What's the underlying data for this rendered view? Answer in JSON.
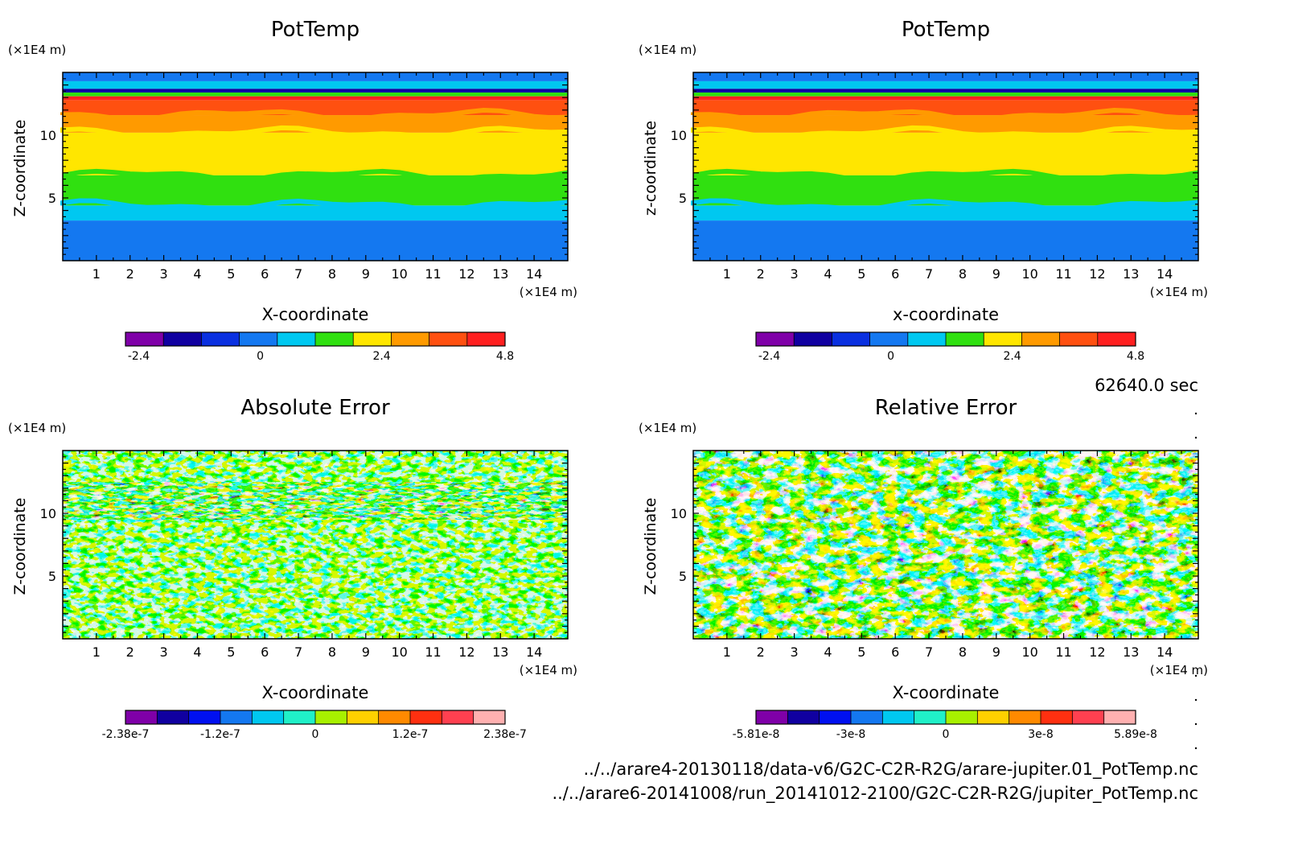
{
  "panels": [
    {
      "id": "pt1",
      "title": "PotTemp",
      "xlabel": "X-coordinate",
      "ylabel": "Z-coordinate",
      "x_unit": "(×1E4 m)",
      "y_unit": "(×1E4 m)",
      "x_ticks": [
        "1",
        "2",
        "3",
        "4",
        "5",
        "6",
        "7",
        "8",
        "9",
        "10",
        "11",
        "12",
        "13",
        "14"
      ],
      "y_ticks": [
        "5",
        "10"
      ],
      "colorbar": {
        "colors": [
          "#7f00a8",
          "#1000a0",
          "#0a30e0",
          "#1478f0",
          "#00c8f0",
          "#30e010",
          "#ffe600",
          "#ff9a00",
          "#ff5010",
          "#ff2020"
        ],
        "tick_labels": [
          "-2.4",
          "0",
          "2.4",
          "4.8"
        ]
      }
    },
    {
      "id": "pt2",
      "title": "PotTemp",
      "xlabel": "x-coordinate",
      "ylabel": "z-coordinate",
      "x_unit": "(×1E4 m)",
      "y_unit": "(×1E4 m)",
      "x_ticks": [
        "1",
        "2",
        "3",
        "4",
        "5",
        "6",
        "7",
        "8",
        "9",
        "10",
        "11",
        "12",
        "13",
        "14"
      ],
      "y_ticks": [
        "5",
        "10"
      ],
      "colorbar": {
        "colors": [
          "#7f00a8",
          "#1000a0",
          "#0a30e0",
          "#1478f0",
          "#00c8f0",
          "#30e010",
          "#ffe600",
          "#ff9a00",
          "#ff5010",
          "#ff2020"
        ],
        "tick_labels": [
          "-2.4",
          "0",
          "2.4",
          "4.8"
        ]
      }
    },
    {
      "id": "abs",
      "title": "Absolute Error",
      "xlabel": "X-coordinate",
      "ylabel": "Z-coordinate",
      "x_unit": "(×1E4 m)",
      "y_unit": "(×1E4 m)",
      "x_ticks": [
        "1",
        "2",
        "3",
        "4",
        "5",
        "6",
        "7",
        "8",
        "9",
        "10",
        "11",
        "12",
        "13",
        "14"
      ],
      "y_ticks": [
        "5",
        "10"
      ],
      "colorbar": {
        "colors": [
          "#7f00a8",
          "#1000a0",
          "#0010f0",
          "#1478f0",
          "#00c8f0",
          "#20f0c8",
          "#a8f000",
          "#ffd000",
          "#ff8a00",
          "#ff3010",
          "#ff4050",
          "#ffb0b0"
        ],
        "tick_labels": [
          "-2.38e-7",
          "-1.2e-7",
          "0",
          "1.2e-7",
          "2.38e-7"
        ]
      }
    },
    {
      "id": "rel",
      "title": "Relative Error",
      "xlabel": "X-coordinate",
      "ylabel": "Z-coordinate",
      "x_unit": "(×1E4 m)",
      "y_unit": "(×1E4 m)",
      "x_ticks": [
        "1",
        "2",
        "3",
        "4",
        "5",
        "6",
        "7",
        "8",
        "9",
        "10",
        "11",
        "12",
        "13",
        "14"
      ],
      "y_ticks": [
        "5",
        "10"
      ],
      "colorbar": {
        "colors": [
          "#7f00a8",
          "#1000a0",
          "#0010f0",
          "#1478f0",
          "#00c8f0",
          "#20f0c8",
          "#a8f000",
          "#ffd000",
          "#ff8a00",
          "#ff3010",
          "#ff4050",
          "#ffb0b0"
        ],
        "tick_labels": [
          "-5.81e-8",
          "-3e-8",
          "0",
          "3e-8",
          "5.89e-8"
        ]
      }
    }
  ],
  "time_label": "62640.0 sec",
  "file_paths": [
    "../../arare4-20130118/data-v6/G2C-C2R-R2G/arare-jupiter.01_PotTemp.nc",
    "../../arare6-20141008/run_20141012-2100/G2C-C2R-R2G/jupiter_PotTemp.nc"
  ],
  "chart_data": [
    {
      "type": "heatmap",
      "title": "PotTemp",
      "xlabel": "X-coordinate",
      "ylabel": "Z-coordinate",
      "x_unit": "(×1E4 m)",
      "y_unit": "(×1E4 m)",
      "xlim": [
        0,
        15
      ],
      "ylim": [
        0,
        15
      ],
      "levels": [
        -3.6,
        -2.4,
        -1.2,
        0,
        1.2,
        2.4,
        3.6,
        4.8,
        6.0,
        7.2,
        8.4
      ],
      "colorbar_ticks": [
        -2.4,
        0,
        2.4,
        4.8
      ],
      "bands": [
        {
          "z_bottom": 0,
          "z_top": 3.2,
          "level_index": 3
        },
        {
          "z_bottom": 3.2,
          "z_top": 4.4,
          "level_index": 4
        },
        {
          "z_bottom": 4.4,
          "z_top": 6.8,
          "level_index": 5
        },
        {
          "z_bottom": 6.8,
          "z_top": 10.2,
          "level_index": 6
        },
        {
          "z_bottom": 10.2,
          "z_top": 11.6,
          "level_index": 7
        },
        {
          "z_bottom": 11.6,
          "z_top": 12.8,
          "level_index": 8
        },
        {
          "z_bottom": 12.8,
          "z_top": 13.1,
          "level_index": 9
        },
        {
          "z_bottom": 13.1,
          "z_top": 13.4,
          "level_index": 5
        },
        {
          "z_bottom": 13.4,
          "z_top": 13.7,
          "level_index": 1
        },
        {
          "z_bottom": 13.7,
          "z_top": 14.3,
          "level_index": 4
        },
        {
          "z_bottom": 14.3,
          "z_top": 15,
          "level_index": 3
        }
      ]
    },
    {
      "type": "heatmap",
      "title": "PotTemp",
      "xlabel": "x-coordinate",
      "ylabel": "z-coordinate",
      "x_unit": "(×1E4 m)",
      "y_unit": "(×1E4 m)",
      "xlim": [
        0,
        15
      ],
      "ylim": [
        0,
        15
      ],
      "levels": [
        -3.6,
        -2.4,
        -1.2,
        0,
        1.2,
        2.4,
        3.6,
        4.8,
        6.0,
        7.2,
        8.4
      ],
      "colorbar_ticks": [
        -2.4,
        0,
        2.4,
        4.8
      ],
      "bands": [
        {
          "z_bottom": 0,
          "z_top": 3.2,
          "level_index": 3
        },
        {
          "z_bottom": 3.2,
          "z_top": 4.4,
          "level_index": 4
        },
        {
          "z_bottom": 4.4,
          "z_top": 6.8,
          "level_index": 5
        },
        {
          "z_bottom": 6.8,
          "z_top": 10.2,
          "level_index": 6
        },
        {
          "z_bottom": 10.2,
          "z_top": 11.6,
          "level_index": 7
        },
        {
          "z_bottom": 11.6,
          "z_top": 12.8,
          "level_index": 8
        },
        {
          "z_bottom": 12.8,
          "z_top": 13.1,
          "level_index": 9
        },
        {
          "z_bottom": 13.1,
          "z_top": 13.4,
          "level_index": 5
        },
        {
          "z_bottom": 13.4,
          "z_top": 13.7,
          "level_index": 1
        },
        {
          "z_bottom": 13.7,
          "z_top": 14.3,
          "level_index": 4
        },
        {
          "z_bottom": 14.3,
          "z_top": 15,
          "level_index": 3
        }
      ]
    },
    {
      "type": "heatmap",
      "title": "Absolute Error",
      "xlabel": "X-coordinate",
      "ylabel": "Z-coordinate",
      "x_unit": "(×1E4 m)",
      "y_unit": "(×1E4 m)",
      "xlim": [
        0,
        15
      ],
      "ylim": [
        0,
        15
      ],
      "vmin": -2.38e-07,
      "vmax": 2.38e-07,
      "colorbar_ticks": [
        -2.38e-07,
        -1.2e-07,
        0,
        1.2e-07,
        2.38e-07
      ],
      "dominant_levels": [
        "near zero (cyan / green)"
      ],
      "strong_error_band_z": [
        9.5,
        12.5
      ]
    },
    {
      "type": "heatmap",
      "title": "Relative Error",
      "xlabel": "X-coordinate",
      "ylabel": "Z-coordinate",
      "x_unit": "(×1E4 m)",
      "y_unit": "(×1E4 m)",
      "xlim": [
        0,
        15
      ],
      "ylim": [
        0,
        15
      ],
      "vmin": -5.81e-08,
      "vmax": 5.89e-08,
      "colorbar_ticks": [
        -5.81e-08,
        -3e-08,
        0,
        3e-08,
        5.89e-08
      ],
      "dominant_levels": [
        "full range, noisy"
      ]
    }
  ]
}
